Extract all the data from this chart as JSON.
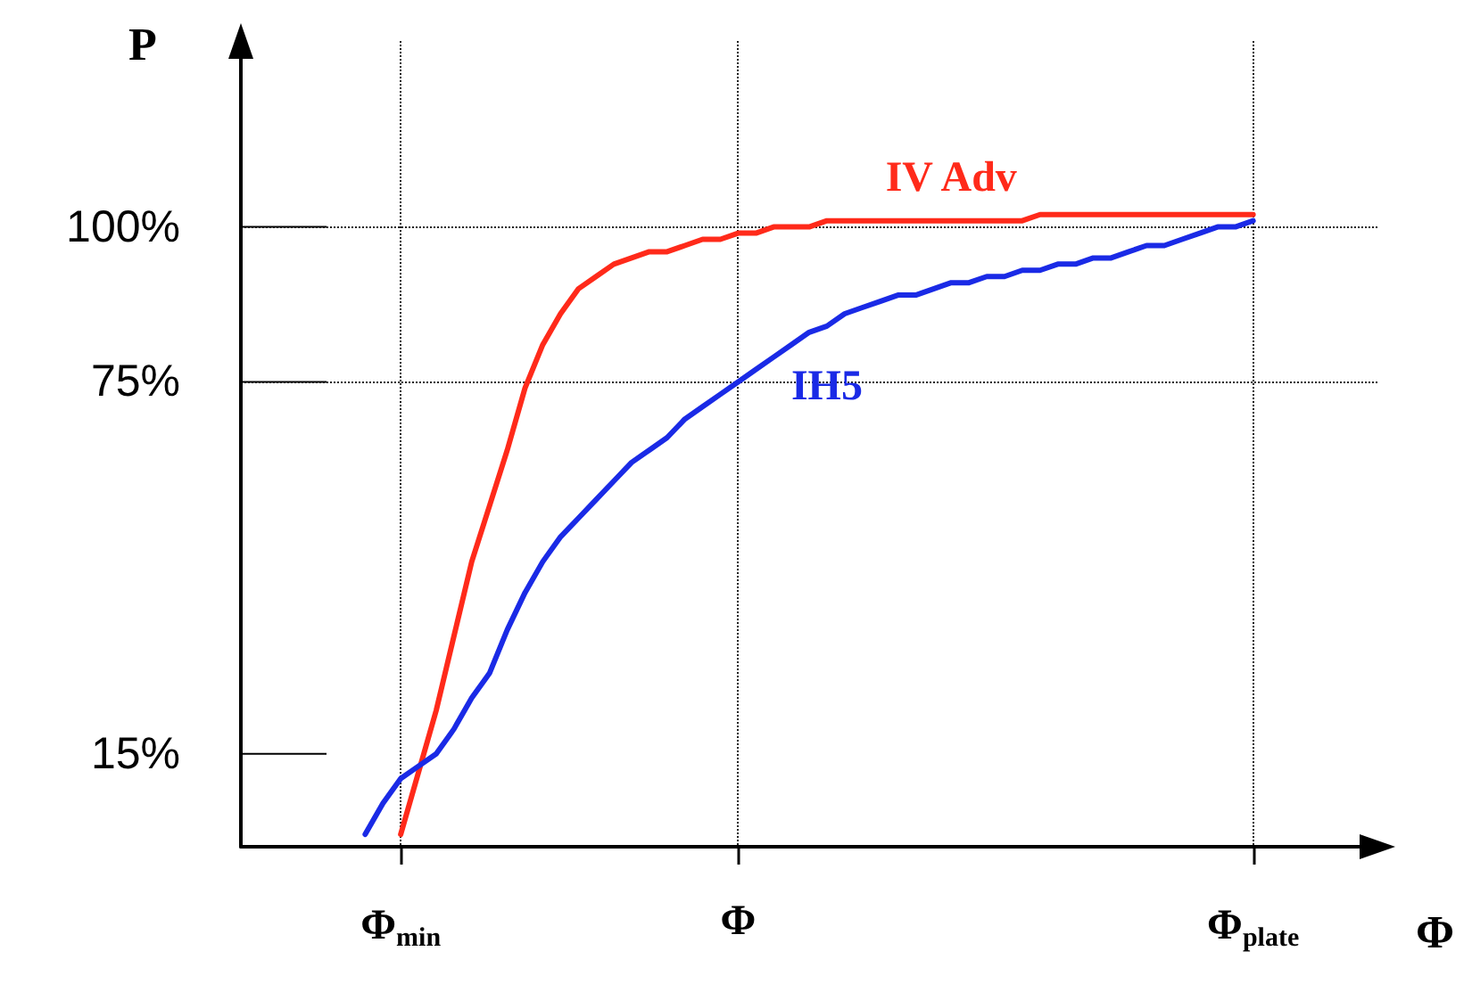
{
  "chart_data": {
    "type": "line",
    "xlabel": "Φ",
    "ylabel": "P",
    "categories": [
      null,
      null,
      null,
      null,
      null,
      null,
      null,
      null,
      null,
      "Φ$_{min}$",
      null,
      null,
      null,
      null,
      null,
      null,
      null,
      null,
      null,
      null,
      null,
      null,
      null,
      null,
      null,
      null,
      null,
      null,
      "Φ",
      null,
      null,
      null,
      null,
      null,
      null,
      null,
      null,
      null,
      null,
      null,
      null,
      null,
      null,
      null,
      null,
      null,
      null,
      null,
      null,
      null,
      null,
      null,
      null,
      null,
      null,
      null,
      null,
      "Φ$_{plate}$",
      null,
      null,
      null,
      null,
      null,
      null,
      null
    ],
    "ylim": [
      0,
      130
    ],
    "yticks": [
      {
        "value": 15,
        "label": "15%"
      },
      {
        "value": 75,
        "label": "75%"
      },
      {
        "value": 100,
        "label": "100%"
      }
    ],
    "grid": true,
    "marker": "none",
    "line_style": "solid",
    "series": [
      {
        "name": "IV Adv",
        "color": "#ff2a1a",
        "values": [
          null,
          null,
          null,
          null,
          null,
          null,
          null,
          null,
          null,
          2,
          12,
          22,
          34,
          46,
          55,
          64,
          74,
          81,
          86,
          90,
          92,
          94,
          95,
          96,
          96,
          97,
          98,
          98,
          99,
          99,
          100,
          100,
          100,
          101,
          101,
          101,
          101,
          101,
          101,
          101,
          101,
          101,
          101,
          101,
          101,
          102,
          102,
          102,
          102,
          102,
          102,
          102,
          102,
          102,
          102,
          102,
          102,
          102,
          null,
          null,
          null,
          null,
          null,
          null,
          null
        ]
      },
      {
        "name": "IH5",
        "color": "#1a2ae6",
        "values": [
          null,
          null,
          null,
          null,
          null,
          null,
          null,
          2,
          7,
          11,
          13,
          15,
          19,
          24,
          28,
          35,
          41,
          46,
          50,
          53,
          56,
          59,
          62,
          64,
          66,
          69,
          71,
          73,
          75,
          77,
          79,
          81,
          83,
          84,
          86,
          87,
          88,
          89,
          89,
          90,
          91,
          91,
          92,
          92,
          93,
          93,
          94,
          94,
          95,
          95,
          96,
          97,
          97,
          98,
          99,
          100,
          100,
          101,
          null,
          null,
          null,
          null,
          null,
          null,
          null
        ]
      }
    ]
  }
}
